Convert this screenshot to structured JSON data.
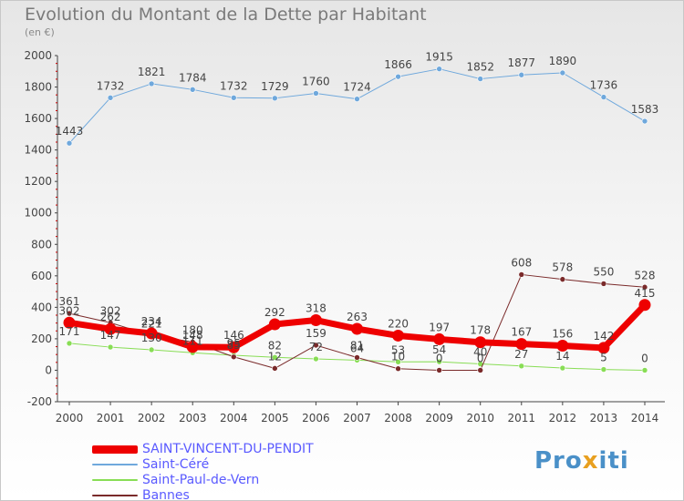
{
  "title": "Evolution du Montant de la Dette par Habitant",
  "subtitle": "(en €)",
  "logo": {
    "part1": "Pro",
    "part2": "x",
    "part3": "iti"
  },
  "chart_data": {
    "type": "line",
    "x": [
      "2000",
      "2001",
      "2002",
      "2003",
      "2004",
      "2005",
      "2006",
      "2007",
      "2008",
      "2009",
      "2010",
      "2011",
      "2012",
      "2013",
      "2014"
    ],
    "ylim": [
      -200,
      2000
    ],
    "yticks": [
      "2000",
      "1800",
      "1600",
      "1400",
      "1200",
      "1000",
      "800",
      "600",
      "400",
      "200",
      "0",
      "-200"
    ],
    "grid": false,
    "legend_position": "bottom-left",
    "series": [
      {
        "name": "SAINT-VINCENT-DU-PENDIT",
        "color": "#ee0000",
        "width": 7,
        "values": [
          302,
          262,
          234,
          148,
          146,
          292,
          318,
          263,
          220,
          197,
          178,
          167,
          156,
          142,
          415
        ],
        "labels": [
          "302",
          "262",
          "234",
          "148",
          "146",
          "292",
          "318",
          "263",
          "220",
          "197",
          "178",
          "167",
          "156",
          "142",
          "415"
        ]
      },
      {
        "name": "Saint-Céré",
        "color": "#6fa8dc",
        "width": 1,
        "values": [
          1443,
          1732,
          1821,
          1784,
          1732,
          1729,
          1760,
          1724,
          1866,
          1915,
          1852,
          1877,
          1890,
          1736,
          1583
        ],
        "labels": [
          "1443",
          "1732",
          "1821",
          "1784",
          "1732",
          "1729",
          "1760",
          "1724",
          "1866",
          "1915",
          "1852",
          "1877",
          "1890",
          "1736",
          "1583"
        ]
      },
      {
        "name": "Saint-Paul-de-Vern",
        "color": "#88dd55",
        "width": 1,
        "values": [
          171,
          147,
          130,
          111,
          95,
          82,
          72,
          64,
          53,
          54,
          40,
          27,
          14,
          5,
          0
        ],
        "labels": [
          "171",
          "147",
          "130",
          "111",
          "95",
          "82",
          "72",
          "64",
          "53",
          "54",
          "40",
          "27",
          "14",
          "5",
          "0"
        ]
      },
      {
        "name": "Bannes",
        "color": "#7a2a2a",
        "width": 1,
        "values": [
          361,
          302,
          221,
          180,
          85,
          12,
          159,
          81,
          10,
          0,
          0,
          608,
          578,
          550,
          528
        ],
        "labels": [
          "361",
          "302",
          "221",
          "180",
          "85",
          "12",
          "159",
          "81",
          "10",
          "0",
          "0",
          "608",
          "578",
          "550",
          "528"
        ]
      }
    ]
  }
}
